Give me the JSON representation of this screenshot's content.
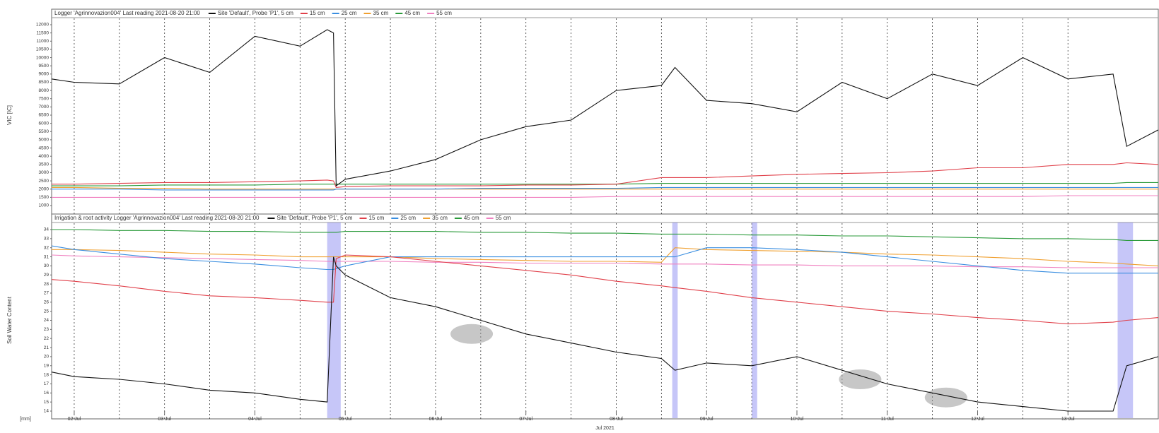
{
  "chart_data": [
    {
      "type": "line",
      "title": "Logger 'Agrinnovazion004'   Last reading 2021-08-20 21:00",
      "y_label": "VIC [IC]",
      "x": [
        1.75,
        2,
        2.5,
        3,
        3.5,
        4,
        4.5,
        4.8,
        4.87,
        4.9,
        5,
        5.5,
        6,
        6.5,
        7,
        7.5,
        8,
        8.5,
        8.65,
        9,
        9.5,
        10,
        10.5,
        11,
        11.5,
        12,
        12.5,
        13,
        13.5,
        13.65,
        14
      ],
      "xlim": [
        1.75,
        14
      ],
      "ylim": [
        1000,
        12000
      ],
      "yticks": [
        1000,
        1500,
        2000,
        2500,
        3000,
        3500,
        4000,
        4500,
        5000,
        5500,
        6000,
        6500,
        7000,
        7500,
        8000,
        8500,
        9000,
        9500,
        10000,
        10500,
        11000,
        11500,
        12000
      ],
      "grid": true,
      "series": [
        {
          "name": "Site 'Default', Probe 'P1', 5 cm",
          "color": "#111111",
          "values": [
            8700,
            8500,
            8400,
            10000,
            9100,
            11300,
            10700,
            11700,
            11500,
            2200,
            2600,
            3100,
            3800,
            5000,
            5800,
            6200,
            8000,
            8300,
            9400,
            7400,
            7200,
            6700,
            8500,
            7500,
            9000,
            8300,
            10000,
            8700,
            9000,
            4600,
            5600
          ]
        },
        {
          "name": "15 cm",
          "color": "#e0404a",
          "values": [
            2300,
            2300,
            2350,
            2400,
            2400,
            2450,
            2500,
            2550,
            2500,
            2100,
            2150,
            2200,
            2200,
            2200,
            2250,
            2250,
            2300,
            2700,
            2700,
            2700,
            2800,
            2900,
            2950,
            3000,
            3100,
            3300,
            3300,
            3500,
            3500,
            3600,
            3500
          ]
        },
        {
          "name": "25 cm",
          "color": "#3a8ee0",
          "values": [
            2000,
            2000,
            2000,
            1950,
            1950,
            1950,
            1950,
            1950,
            1950,
            2000,
            2000,
            2000,
            2000,
            2050,
            2050,
            2050,
            2050,
            2100,
            2100,
            2100,
            2100,
            2100,
            2100,
            2100,
            2100,
            2100,
            2100,
            2100,
            2100,
            2100,
            2100
          ]
        },
        {
          "name": "35 cm",
          "color": "#f0a030",
          "values": [
            2100,
            2100,
            2050,
            2050,
            2000,
            2000,
            2000,
            2000,
            2000,
            2000,
            2000,
            2000,
            2000,
            2000,
            2000,
            2000,
            2000,
            2000,
            2000,
            2000,
            2000,
            2000,
            2000,
            2000,
            2000,
            2000,
            2000,
            2000,
            2000,
            2000,
            2000
          ]
        },
        {
          "name": "45 cm",
          "color": "#2a9a3a",
          "values": [
            2200,
            2200,
            2200,
            2250,
            2250,
            2250,
            2300,
            2300,
            2300,
            2300,
            2300,
            2300,
            2300,
            2300,
            2300,
            2300,
            2300,
            2350,
            2350,
            2350,
            2350,
            2350,
            2350,
            2350,
            2350,
            2350,
            2350,
            2350,
            2350,
            2400,
            2400
          ]
        },
        {
          "name": "55 cm",
          "color": "#f080c0",
          "values": [
            1500,
            1500,
            1500,
            1500,
            1500,
            1500,
            1500,
            1500,
            1500,
            1500,
            1500,
            1500,
            1500,
            1500,
            1500,
            1500,
            1550,
            1550,
            1550,
            1550,
            1550,
            1550,
            1550,
            1550,
            1550,
            1550,
            1550,
            1600,
            1600,
            1600,
            1600
          ]
        }
      ]
    },
    {
      "type": "line",
      "title": "Irrigation & root activity   Logger 'Agrinnovazion004'   Last reading 2021-08-20 21:00",
      "y_label": "Soil Water Content",
      "x_label": "Jul 2021",
      "x_unit": "[mm]",
      "x": [
        1.75,
        2,
        2.5,
        3,
        3.5,
        4,
        4.5,
        4.8,
        4.87,
        4.9,
        5,
        5.5,
        6,
        6.5,
        7,
        7.5,
        8,
        8.5,
        8.65,
        9,
        9.5,
        10,
        10.5,
        11,
        11.5,
        12,
        12.5,
        13,
        13.5,
        13.65,
        14
      ],
      "xlim": [
        1.75,
        14
      ],
      "xticks": [
        {
          "value": 2,
          "label": "02 Jul"
        },
        {
          "value": 3,
          "label": "03 Jul"
        },
        {
          "value": 4,
          "label": "04 Jul"
        },
        {
          "value": 5,
          "label": "05 Jul"
        },
        {
          "value": 6,
          "label": "06 Jul"
        },
        {
          "value": 7,
          "label": "07 Jul"
        },
        {
          "value": 8,
          "label": "08 Jul"
        },
        {
          "value": 9,
          "label": "09 Jul"
        },
        {
          "value": 10,
          "label": "10 Jul"
        },
        {
          "value": 11,
          "label": "11 Jul"
        },
        {
          "value": 12,
          "label": "12 Jul"
        },
        {
          "value": 13,
          "label": "13 Jul"
        }
      ],
      "ylim": [
        14,
        34
      ],
      "yticks": [
        14,
        15,
        16,
        17,
        18,
        19,
        20,
        21,
        22,
        23,
        24,
        25,
        26,
        27,
        28,
        29,
        30,
        31,
        32,
        33,
        34
      ],
      "grid": true,
      "irrigation": [
        [
          4.8,
          4.95
        ],
        [
          8.62,
          8.68
        ],
        [
          9.5,
          9.56
        ],
        [
          13.55,
          13.72
        ]
      ],
      "root_activity": [
        [
          6.4,
          22.5
        ],
        [
          10.7,
          17.5
        ],
        [
          11.65,
          15.5
        ]
      ],
      "series": [
        {
          "name": "Site 'Default', Probe 'P1', 5 cm",
          "color": "#111111",
          "values": [
            18.3,
            17.8,
            17.5,
            17,
            16.3,
            16,
            15.3,
            15,
            31,
            30,
            29,
            26.5,
            25.5,
            24,
            22.5,
            21.5,
            20.5,
            19.8,
            18.5,
            19.3,
            19,
            20,
            18.5,
            17,
            16,
            15,
            14.5,
            14,
            14,
            19,
            20
          ]
        },
        {
          "name": "15 cm",
          "color": "#e0404a",
          "values": [
            28.5,
            28.3,
            27.8,
            27.2,
            26.7,
            26.5,
            26.2,
            26,
            26,
            30.8,
            31.2,
            31,
            30.5,
            30,
            29.5,
            29,
            28.3,
            27.8,
            27.6,
            27.2,
            26.5,
            26,
            25.5,
            25,
            24.7,
            24.3,
            24,
            23.6,
            23.8,
            24,
            24.3
          ]
        },
        {
          "name": "25 cm",
          "color": "#3a8ee0",
          "values": [
            32.2,
            31.8,
            31.3,
            30.8,
            30.5,
            30.2,
            29.8,
            29.6,
            29.6,
            29.7,
            30,
            31,
            31,
            31,
            31,
            31,
            31,
            31,
            31,
            32,
            32,
            31.8,
            31.5,
            31,
            30.5,
            30,
            29.5,
            29.2,
            29.2,
            29.2,
            29.2
          ]
        },
        {
          "name": "35 cm",
          "color": "#f0a030",
          "values": [
            31.8,
            31.8,
            31.7,
            31.5,
            31.3,
            31.2,
            31,
            31,
            31,
            31,
            31,
            31,
            30.8,
            30.7,
            30.6,
            30.5,
            30.5,
            30.4,
            32,
            31.8,
            31.7,
            31.6,
            31.5,
            31.3,
            31.2,
            31,
            30.8,
            30.5,
            30.3,
            30.2,
            30
          ]
        },
        {
          "name": "45 cm",
          "color": "#2a9a3a",
          "values": [
            34,
            34,
            33.9,
            33.9,
            33.8,
            33.8,
            33.7,
            33.7,
            33.7,
            33.7,
            33.8,
            33.8,
            33.8,
            33.7,
            33.7,
            33.6,
            33.6,
            33.5,
            33.5,
            33.5,
            33.4,
            33.4,
            33.3,
            33.3,
            33.2,
            33.1,
            33,
            33,
            32.9,
            32.8,
            32.8
          ]
        },
        {
          "name": "55 cm",
          "color": "#f080c0",
          "values": [
            31.2,
            31.1,
            31,
            30.9,
            30.8,
            30.7,
            30.6,
            30.5,
            30.5,
            30.5,
            30.5,
            30.5,
            30.4,
            30.4,
            30.3,
            30.3,
            30.3,
            30.2,
            30.2,
            30.2,
            30.1,
            30.1,
            30,
            30,
            30,
            29.9,
            29.9,
            29.8,
            29.8,
            29.8,
            29.8
          ]
        }
      ]
    }
  ]
}
